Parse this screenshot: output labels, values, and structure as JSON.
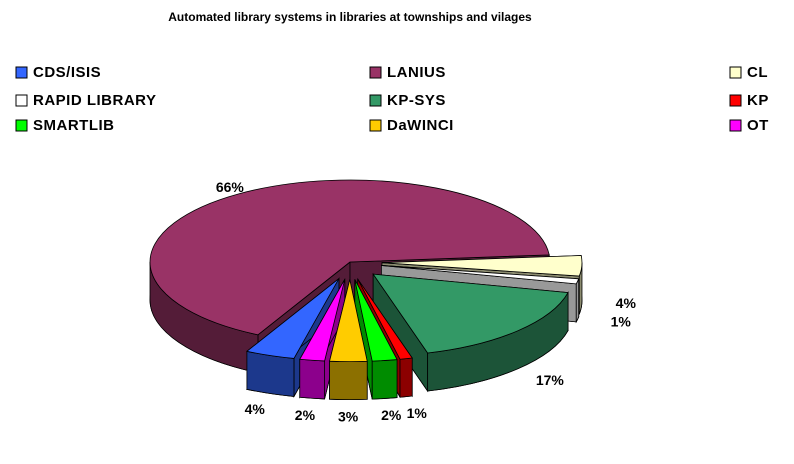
{
  "chart_data": {
    "type": "pie3d",
    "title": "Automated library systems in libraries at townships and vilages",
    "categories": [
      "CDS/ISIS",
      "LANIUS",
      "CL",
      "RAPID LIBRARY",
      "KP-SYS",
      "KP",
      "SMARTLIB",
      "DaWINCI",
      "OT"
    ],
    "values": [
      4,
      66,
      4,
      1,
      17,
      1,
      2,
      3,
      2
    ],
    "value_labels": [
      "4%",
      "66%",
      "4%",
      "1%",
      "17%",
      "1%",
      "2%",
      "3%",
      "2%"
    ],
    "colors": [
      "#3366ff",
      "#993366",
      "#ffffcc",
      "#ffffff",
      "#339966",
      "#ff0000",
      "#00ff00",
      "#ffcc00",
      "#ff00ff"
    ],
    "legend": "top"
  }
}
